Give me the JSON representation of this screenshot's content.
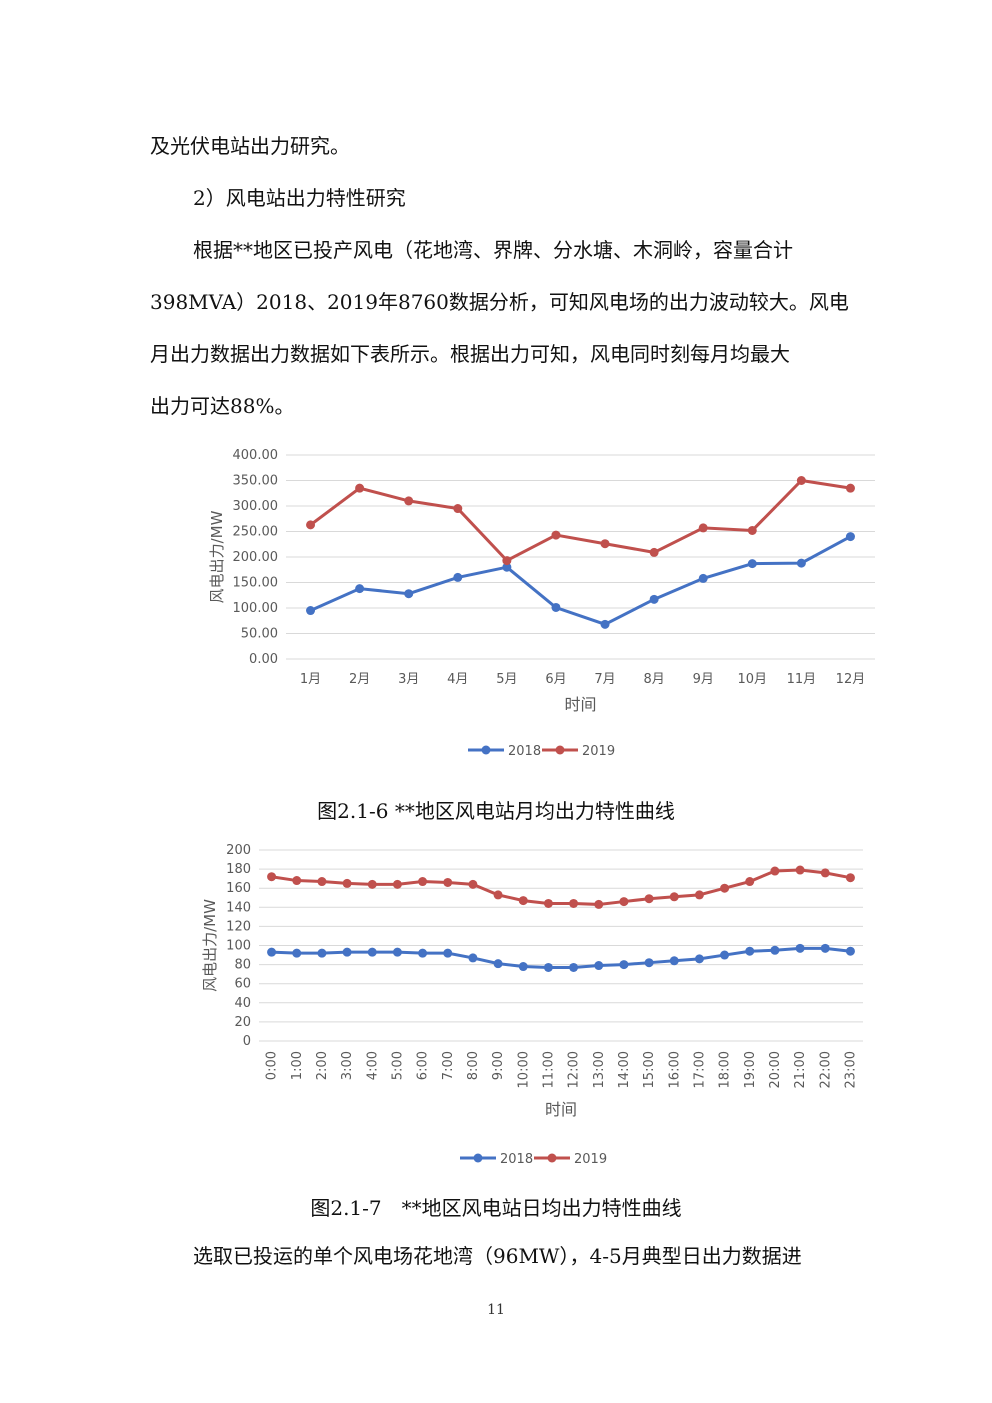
{
  "paragraphs": {
    "p1": "及光伏电站出力研究。",
    "p2": "2）风电站出力特性研究",
    "p3": "根据**地区已投产风电（花地湾、界牌、分水塘、木洞岭，容量合计",
    "p4": "398MVA）2018、2019年8760数据分析，可知风电场的出力波动较大。风电",
    "p5": "月出力数据出力数据如下表所示。根据出力可知，风电同时刻每月均最大",
    "p6": "出力可达88%。",
    "p7": "选取已投运的单个风电场花地湾（96MW），4-5月典型日出力数据进"
  },
  "captions": {
    "fig6": "图2.1-6 **地区风电站月均出力特性曲线",
    "fig7": "图2.1-7　**地区风电站日均出力特性曲线"
  },
  "page_number": "11",
  "colors": {
    "series_2018": "#4472C4",
    "series_2019": "#C0504D",
    "grid": "#d9d9d9"
  },
  "chart_data": [
    {
      "type": "line",
      "ylabel": "风电出力/MW",
      "xlabel": "时间",
      "categories": [
        "1月",
        "2月",
        "3月",
        "4月",
        "5月",
        "6月",
        "7月",
        "8月",
        "9月",
        "10月",
        "11月",
        "12月"
      ],
      "ylim": [
        0,
        400
      ],
      "yticks": [
        "0.00",
        "50.00",
        "100.00",
        "150.00",
        "200.00",
        "250.00",
        "300.00",
        "350.00",
        "400.00"
      ],
      "grid": true,
      "legend": "bottom",
      "series": [
        {
          "name": "2018",
          "values": [
            95,
            138,
            128,
            160,
            180,
            101,
            68,
            117,
            158,
            187,
            188,
            240
          ]
        },
        {
          "name": "2019",
          "values": [
            263,
            335,
            310,
            295,
            193,
            243,
            226,
            209,
            257,
            252,
            350,
            335
          ]
        }
      ]
    },
    {
      "type": "line",
      "ylabel": "风电出力/MW",
      "xlabel": "时间",
      "categories": [
        "0:00",
        "1:00",
        "2:00",
        "3:00",
        "4:00",
        "5:00",
        "6:00",
        "7:00",
        "8:00",
        "9:00",
        "10:00",
        "11:00",
        "12:00",
        "13:00",
        "14:00",
        "15:00",
        "16:00",
        "17:00",
        "18:00",
        "19:00",
        "20:00",
        "21:00",
        "22:00",
        "23:00"
      ],
      "ylim": [
        0,
        200
      ],
      "yticks": [
        "0",
        "20",
        "40",
        "60",
        "80",
        "100",
        "120",
        "140",
        "160",
        "180",
        "200"
      ],
      "grid": true,
      "legend": "bottom",
      "series": [
        {
          "name": "2018",
          "values": [
            93,
            92,
            92,
            93,
            93,
            93,
            92,
            92,
            87,
            81,
            78,
            77,
            77,
            79,
            80,
            82,
            84,
            86,
            90,
            94,
            95,
            97,
            97,
            94
          ]
        },
        {
          "name": "2019",
          "values": [
            172,
            168,
            167,
            165,
            164,
            164,
            167,
            166,
            164,
            153,
            147,
            144,
            144,
            143,
            146,
            149,
            151,
            153,
            160,
            167,
            178,
            179,
            176,
            171
          ]
        }
      ]
    }
  ]
}
